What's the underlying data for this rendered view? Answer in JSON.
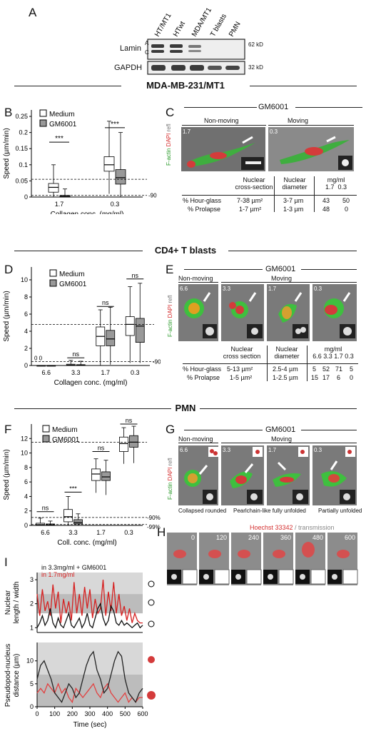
{
  "panelA": {
    "letter": "A",
    "lanes": [
      "HT/MT1",
      "HTwt",
      "MDA/MT1",
      "T blasts",
      "PMN"
    ],
    "rows": [
      {
        "label": "Lamin",
        "sub_a": "A",
        "sub_c": "C",
        "kd": "62 kD"
      },
      {
        "label": "GAPDH",
        "kd": "32 kD"
      }
    ]
  },
  "sections": {
    "mda": "MDA-MB-231/MT1",
    "tcell": "CD4+ T blasts",
    "pmn": "PMN"
  },
  "panelB": {
    "letter": "B",
    "ylabel": "Speed (µm/min)",
    "xlabel": "Collagen conc. (mg/ml)",
    "legend": [
      "Medium",
      "GM6001"
    ],
    "cats": [
      "1.7",
      "0.3"
    ],
    "yticks": [
      "0",
      "0.05",
      "0.1",
      "0.15",
      "0.2",
      "0.25"
    ],
    "sig": [
      "***",
      "***"
    ],
    "pct": "-90%"
  },
  "panelC": {
    "letter": "C",
    "title": "GM6001",
    "hdr": [
      "Non-moving",
      "Moving"
    ],
    "conc": [
      "1.7",
      "0.3"
    ],
    "stain": [
      "F-actin",
      "DAPI",
      "refl"
    ],
    "table": {
      "h1": "Nuclear",
      "h1b": "cross-section",
      "h2": "Nuclear",
      "h2b": "diameter",
      "h3": "mg/ml",
      "h3a": "1.7",
      "h3b": "0.3",
      "r1": [
        "% Hour-glass",
        "7-38 µm²",
        "3-7 µm",
        "43",
        "50"
      ],
      "r2": [
        "% Prolapse",
        "1-7 µm²",
        "1-3 µm",
        "48",
        "0"
      ]
    }
  },
  "panelD": {
    "letter": "D",
    "ylabel": "Speed (µm/min)",
    "xlabel": "Collagen conc. (mg/ml)",
    "legend": [
      "Medium",
      "GM6001"
    ],
    "cats": [
      "6.6",
      "3.3",
      "1.7",
      "0.3"
    ],
    "yticks": [
      "0",
      "2",
      "4",
      "6",
      "8",
      "10"
    ],
    "sig": [
      "ns",
      "ns",
      "ns"
    ],
    "pct": "-90%",
    "zeros": "0  0"
  },
  "panelE": {
    "letter": "E",
    "title": "GM6001",
    "hdr": [
      "Non-moving",
      "Moving"
    ],
    "conc": [
      "6.6",
      "3.3",
      "1.7",
      "0.3"
    ],
    "stain": [
      "F-actin",
      "DAPI",
      "refl"
    ],
    "table": {
      "h1": "Nuclear",
      "h1b": "cross section",
      "h2": "Nuclear",
      "h2b": "diameter",
      "h3": "mg/ml",
      "h3c": "6.6  3.3  1.7  0.3",
      "r1": [
        "% Hour-glass",
        "5-13 µm²",
        "2.5-4 µm",
        "5",
        "52",
        "71",
        "5"
      ],
      "r2": [
        "% Prolapse",
        "1-5 µm²",
        "1-2.5 µm",
        "15",
        "17",
        "6",
        "0"
      ]
    }
  },
  "panelF": {
    "letter": "F",
    "ylabel": "Speed (µm/min)",
    "xlabel": "Coll. conc. (mg/ml)",
    "legend": [
      "Medium",
      "GM6001"
    ],
    "cats": [
      "6.6",
      "3.3",
      "1.7",
      "0.3"
    ],
    "yticks": [
      "0",
      "2",
      "4",
      "6",
      "8",
      "10",
      "12"
    ],
    "sig": [
      "ns",
      "***",
      "ns",
      "ns"
    ],
    "pct1": "-90%",
    "pct2": "-99%"
  },
  "panelG": {
    "letter": "G",
    "title": "GM6001",
    "hdr": [
      "Non-moving",
      "Moving"
    ],
    "conc": [
      "6.6",
      "3.3",
      "1.7",
      "0.3"
    ],
    "stain": [
      "F-actin",
      "DAPI",
      "refl"
    ],
    "foot": [
      "Collapsed rounded",
      "Pearlchain-like fully unfolded",
      "Partially unfolded"
    ]
  },
  "panelH": {
    "letter": "H",
    "legend_a": "Hoechst 33342",
    "legend_b": " / transmission",
    "times": [
      "0",
      "120",
      "240",
      "360",
      "480",
      "600"
    ]
  },
  "panelI": {
    "letter": "I",
    "leg1": "in 3.3mg/ml + GM6001",
    "leg2": "in 1.7mg/ml",
    "ylabel1": "Nuclear",
    "ylabel1b": "length / width",
    "yticks1": [
      "1",
      "2",
      "3"
    ],
    "ylabel2": "Pseudopod-nucleus",
    "ylabel2b": "distance (µm)",
    "yticks2": [
      "0",
      "5",
      "10"
    ],
    "xticks": [
      "0",
      "100",
      "200",
      "300",
      "400",
      "500",
      "600"
    ],
    "xlabel": "Time (sec)"
  },
  "chart_data": [
    {
      "type": "box",
      "panel": "B",
      "categories": [
        "1.7",
        "0.3"
      ],
      "series": [
        {
          "name": "Medium",
          "values": [
            {
              "min": 0,
              "q1": 0.015,
              "med": 0.03,
              "q3": 0.042,
              "max": 0.1
            },
            {
              "min": 0.01,
              "q1": 0.08,
              "med": 0.1,
              "q3": 0.125,
              "max": 0.235
            }
          ]
        },
        {
          "name": "GM6001",
          "values": [
            {
              "min": 0,
              "q1": 0.0,
              "med": 0.002,
              "q3": 0.005,
              "max": 0.025
            },
            {
              "min": 0,
              "q1": 0.04,
              "med": 0.06,
              "q3": 0.085,
              "max": 0.2
            }
          ]
        }
      ],
      "ylim": [
        0,
        0.27
      ],
      "dashed": [
        0.055,
        0.005
      ]
    },
    {
      "type": "box",
      "panel": "D",
      "categories": [
        "6.6",
        "3.3",
        "1.7",
        "0.3"
      ],
      "series": [
        {
          "name": "Medium",
          "values": [
            {
              "min": 0,
              "q1": 0,
              "med": 0,
              "q3": 0,
              "max": 0
            },
            {
              "min": 0,
              "q1": 0,
              "med": 0.05,
              "q3": 0.15,
              "max": 0.6
            },
            {
              "min": 0,
              "q1": 2.3,
              "med": 3.4,
              "q3": 4.5,
              "max": 6.5
            },
            {
              "min": 0.3,
              "q1": 3.5,
              "med": 4.8,
              "q3": 5.7,
              "max": 9.2
            }
          ]
        },
        {
          "name": "GM6001",
          "values": [
            {
              "min": 0,
              "q1": 0,
              "med": 0,
              "q3": 0,
              "max": 0
            },
            {
              "min": 0,
              "q1": 0,
              "med": 0.05,
              "q3": 0.1,
              "max": 0.5
            },
            {
              "min": 0.1,
              "q1": 2.3,
              "med": 3.1,
              "q3": 4.1,
              "max": 6.8
            },
            {
              "min": 0.3,
              "q1": 2.7,
              "med": 4.6,
              "q3": 5.5,
              "max": 9.6
            }
          ]
        }
      ],
      "ylim": [
        0,
        11.5
      ],
      "dashed": [
        4.8,
        0.45
      ]
    },
    {
      "type": "box",
      "panel": "F",
      "categories": [
        "6.6",
        "3.3",
        "1.7",
        "0.3"
      ],
      "series": [
        {
          "name": "Medium",
          "values": [
            {
              "min": 0,
              "q1": 0,
              "med": 0.1,
              "q3": 0.3,
              "max": 1
            },
            {
              "min": 0,
              "q1": 0.5,
              "med": 1.2,
              "q3": 2.2,
              "max": 4
            },
            {
              "min": 4.5,
              "q1": 6.2,
              "med": 7.1,
              "q3": 7.8,
              "max": 9.2
            },
            {
              "min": 8.5,
              "q1": 10.2,
              "med": 11.3,
              "q3": 12.2,
              "max": 13.5
            }
          ]
        },
        {
          "name": "GM6001",
          "values": [
            {
              "min": 0,
              "q1": 0,
              "med": 0.05,
              "q3": 0.2,
              "max": 0.6
            },
            {
              "min": 0,
              "q1": 0.2,
              "med": 0.4,
              "q3": 0.8,
              "max": 1.6
            },
            {
              "min": 4.2,
              "q1": 6.2,
              "med": 6.7,
              "q3": 7.4,
              "max": 9
            },
            {
              "min": 8.6,
              "q1": 10.8,
              "med": 11.5,
              "q3": 12.4,
              "max": 13.7
            }
          ]
        }
      ],
      "ylim": [
        0,
        14
      ],
      "dashed": [
        11.5,
        1.1,
        0.12
      ]
    },
    {
      "type": "line",
      "panel": "I-top",
      "x": [
        0,
        15,
        30,
        45,
        60,
        75,
        90,
        105,
        120,
        135,
        150,
        165,
        180,
        195,
        210,
        225,
        240,
        255,
        270,
        285,
        300,
        315,
        330,
        345,
        360,
        375,
        390,
        405,
        420,
        435,
        450,
        465,
        480,
        495,
        510,
        525,
        540,
        555,
        570,
        585,
        600
      ],
      "series": [
        {
          "name": "in 1.7mg/ml",
          "values": [
            2.4,
            1.5,
            2.6,
            1.7,
            2.1,
            1.5,
            2.8,
            1.8,
            2.5,
            1.2,
            2.2,
            1.6,
            2.1,
            1.3,
            2.9,
            1.6,
            2.4,
            1.5,
            2.7,
            1.8,
            2.6,
            1.4,
            2.2,
            1.6,
            1.8,
            3.0,
            1.5,
            2.5,
            1.7,
            2.9,
            1.6,
            2.4,
            1.5,
            1.9,
            1.3,
            1.8,
            1.2,
            1.6,
            1.3,
            1.2,
            1.2
          ]
        },
        {
          "name": "in 3.3mg/ml + GM6001",
          "values": [
            1.0,
            1.2,
            1.5,
            1.1,
            1.3,
            1.8,
            1.2,
            1.0,
            1.4,
            1.1,
            1.0,
            1.3,
            1.6,
            1.1,
            1.0,
            1.2,
            1.4,
            1.0,
            1.2,
            1.6,
            1.1,
            1.0,
            1.4,
            1.8,
            2.0,
            1.4,
            1.1,
            1.3,
            1.9,
            1.7,
            1.2,
            1.1,
            1.3,
            1.1,
            1.2,
            1.1,
            1.0,
            1.1,
            1.2,
            1.0,
            1.1
          ]
        }
      ],
      "ylim": [
        0.8,
        3.3
      ]
    },
    {
      "type": "line",
      "panel": "I-bottom",
      "x": [
        0,
        20,
        40,
        60,
        80,
        100,
        120,
        140,
        160,
        180,
        200,
        220,
        240,
        260,
        280,
        300,
        320,
        340,
        360,
        380,
        400,
        420,
        440,
        460,
        480,
        500,
        520,
        540,
        560,
        580,
        600
      ],
      "series": [
        {
          "name": "in 1.7mg/ml",
          "values": [
            3,
            4,
            3,
            5,
            4,
            3,
            5,
            3,
            4,
            2,
            1,
            4,
            3,
            2,
            3,
            4,
            5,
            3,
            2,
            4,
            5,
            3,
            2,
            1,
            2,
            3,
            1,
            2,
            1,
            2,
            2
          ]
        },
        {
          "name": "in 3.3mg/ml + GM6001",
          "values": [
            6,
            9,
            10,
            8,
            6,
            3,
            2,
            1,
            3,
            5,
            4,
            2,
            3,
            6,
            9,
            11,
            12,
            8,
            6,
            3,
            4,
            7,
            10,
            12,
            11,
            6,
            3,
            2,
            1,
            3,
            4
          ]
        }
      ],
      "ylim": [
        0,
        14
      ]
    }
  ]
}
